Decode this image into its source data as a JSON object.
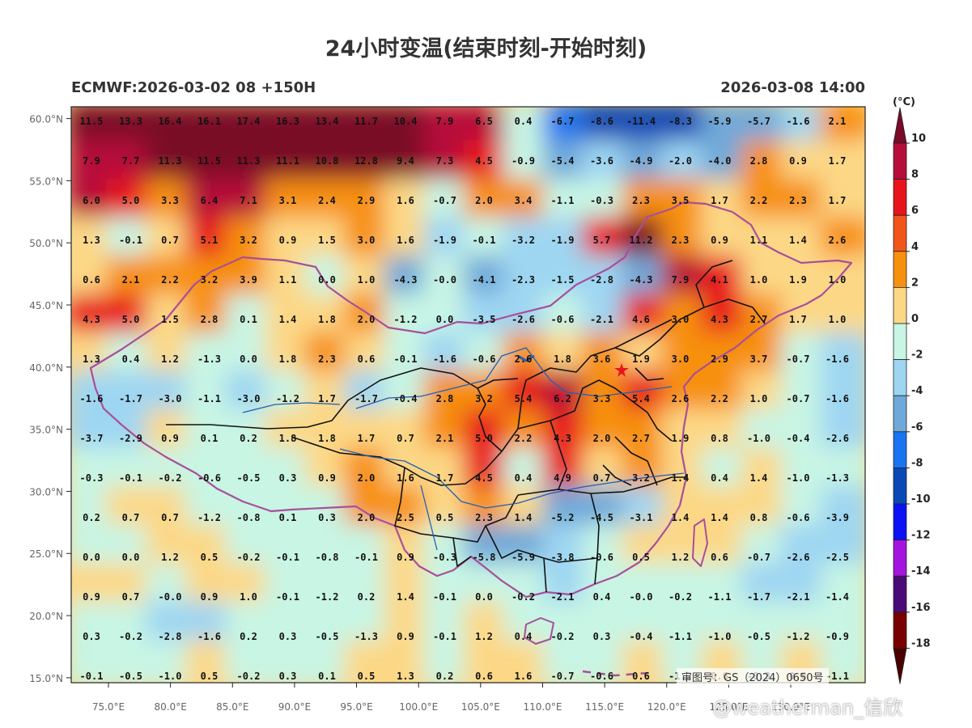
{
  "title": "24小时变温(结束时刻-开始时刻)",
  "subtitle_left": "ECMWF:2026-03-02 08 +150H",
  "subtitle_right": "2026-03-08 14:00",
  "review_number": "审图号：GS（2024）0650号",
  "watermark": "@weatherman_信欣",
  "colorbar": {
    "unit": "(°C)",
    "labels": [
      "10",
      "8",
      "6",
      "4",
      "2",
      "0",
      "-2",
      "-4",
      "-6",
      "-8",
      "-10",
      "-12",
      "-14",
      "-16",
      "-18"
    ],
    "colors": [
      "#7a0a28",
      "#b50e3a",
      "#e8141c",
      "#f2551b",
      "#f7900f",
      "#fcd886",
      "#c8f5e4",
      "#9ed6f2",
      "#6fa9d9",
      "#1a74f2",
      "#0a49b5",
      "#0b12f5",
      "#a414e0",
      "#4a0a78",
      "#7a0000"
    ]
  },
  "map": {
    "lon_labels": [
      "75.0°E",
      "80.0°E",
      "85.0°E",
      "90.0°E",
      "95.0°E",
      "100.0°E",
      "105.0°E",
      "110.0°E",
      "115.0°E",
      "120.0°E",
      "125.0°E",
      "130.0°E"
    ],
    "lat_labels": [
      "60.0°N",
      "55.0°N",
      "50.0°N",
      "45.0°N",
      "40.0°N",
      "35.0°N",
      "30.0°N",
      "25.0°N",
      "20.0°N",
      "15.0°N"
    ],
    "grid_values": [
      [
        "11.5",
        "13.3",
        "16.4",
        "16.1",
        "17.4",
        "16.3",
        "13.4",
        "11.7",
        "10.4",
        "7.9",
        "6.5",
        "0.4",
        "-6.7",
        "-8.6",
        "-11.4",
        "-8.3",
        "-5.9",
        "-5.7",
        "-1.6",
        "2.1"
      ],
      [
        "7.9",
        "7.7",
        "11.3",
        "11.5",
        "11.3",
        "11.1",
        "10.8",
        "12.8",
        "9.4",
        "7.3",
        "4.5",
        "-0.9",
        "-5.4",
        "-3.6",
        "-4.9",
        "-2.0",
        "-4.0",
        "2.8",
        "0.9",
        "1.7"
      ],
      [
        "6.0",
        "5.0",
        "3.3",
        "6.4",
        "7.1",
        "3.1",
        "2.4",
        "2.9",
        "1.6",
        "-0.7",
        "2.0",
        "3.4",
        "-1.1",
        "-0.3",
        "2.3",
        "3.5",
        "1.7",
        "2.2",
        "2.3",
        "1.7"
      ],
      [
        "1.3",
        "-0.1",
        "0.7",
        "5.1",
        "3.2",
        "0.9",
        "1.5",
        "3.0",
        "1.6",
        "-1.9",
        "-0.1",
        "-3.2",
        "-1.9",
        "5.7",
        "11.2",
        "2.3",
        "0.9",
        "1.1",
        "1.4",
        "2.6"
      ],
      [
        "0.6",
        "2.1",
        "2.2",
        "3.2",
        "3.9",
        "1.1",
        "0.0",
        "1.0",
        "-4.3",
        "-0.0",
        "-4.1",
        "-2.3",
        "-1.5",
        "-2.8",
        "-4.3",
        "7.9",
        "4.1",
        "1.0",
        "1.9",
        "1.0"
      ],
      [
        "4.3",
        "5.0",
        "1.5",
        "2.8",
        "0.1",
        "1.4",
        "1.8",
        "2.0",
        "-1.2",
        "0.0",
        "-3.5",
        "-2.6",
        "-0.6",
        "-2.1",
        "4.6",
        "3.0",
        "4.3",
        "2.7",
        "1.7",
        "1.0"
      ],
      [
        "1.3",
        "0.4",
        "1.2",
        "-1.3",
        "0.0",
        "1.8",
        "2.3",
        "0.6",
        "-0.1",
        "-1.6",
        "-0.6",
        "2.6",
        "1.8",
        "3.6",
        "1.9",
        "3.0",
        "2.9",
        "3.7",
        "-0.7",
        "-1.6"
      ],
      [
        "-1.6",
        "-1.7",
        "-3.0",
        "-1.1",
        "-3.0",
        "-1.2",
        "1.7",
        "-1.7",
        "-0.4",
        "2.8",
        "3.2",
        "5.4",
        "6.2",
        "3.3",
        "5.4",
        "2.6",
        "2.2",
        "1.0",
        "-0.7",
        "-1.6"
      ],
      [
        "-3.7",
        "-2.9",
        "0.9",
        "0.1",
        "0.2",
        "1.8",
        "1.8",
        "1.7",
        "0.7",
        "2.1",
        "5.0",
        "2.2",
        "4.3",
        "2.0",
        "2.7",
        "1.9",
        "0.8",
        "-1.0",
        "-0.4",
        "-2.6"
      ],
      [
        "-0.3",
        "-0.1",
        "-0.2",
        "-0.6",
        "-0.5",
        "0.3",
        "0.9",
        "2.0",
        "1.6",
        "1.7",
        "4.5",
        "0.4",
        "4.9",
        "0.7",
        "3.2",
        "1.4",
        "0.4",
        "1.4",
        "-1.0",
        "-1.3"
      ],
      [
        "0.2",
        "0.7",
        "0.7",
        "-1.2",
        "-0.8",
        "0.1",
        "0.3",
        "2.0",
        "2.5",
        "0.5",
        "2.3",
        "1.4",
        "-5.2",
        "-4.5",
        "-3.1",
        "1.4",
        "1.4",
        "0.8",
        "-0.6",
        "-3.9"
      ],
      [
        "0.0",
        "0.0",
        "1.2",
        "0.5",
        "-0.2",
        "-0.1",
        "-0.8",
        "-0.1",
        "0.9",
        "-0.3",
        "-5.8",
        "-5.9",
        "-3.8",
        "-0.6",
        "0.5",
        "1.2",
        "0.6",
        "-0.7",
        "-2.6",
        "-2.5"
      ],
      [
        "0.9",
        "0.7",
        "-0.0",
        "0.9",
        "1.0",
        "-0.1",
        "-1.2",
        "0.2",
        "1.4",
        "-0.1",
        "0.0",
        "-0.2",
        "-2.1",
        "0.4",
        "-0.0",
        "-0.2",
        "-1.1",
        "-1.7",
        "-2.1",
        "-1.4"
      ],
      [
        "0.3",
        "-0.2",
        "-2.8",
        "-1.6",
        "0.2",
        "0.3",
        "-0.5",
        "-1.3",
        "0.9",
        "-0.1",
        "1.2",
        "0.4",
        "-0.2",
        "0.3",
        "-0.4",
        "-1.1",
        "-1.0",
        "-0.5",
        "-1.2",
        "-0.9"
      ],
      [
        "-0.1",
        "-0.5",
        "-1.0",
        "0.5",
        "-0.2",
        "0.3",
        "0.1",
        "0.5",
        "1.3",
        "0.2",
        "0.6",
        "1.6",
        "-0.7",
        "-0.6",
        "0.6",
        "-1.2",
        "0.6",
        "-0.3",
        "0.8",
        "-1.1"
      ]
    ]
  }
}
